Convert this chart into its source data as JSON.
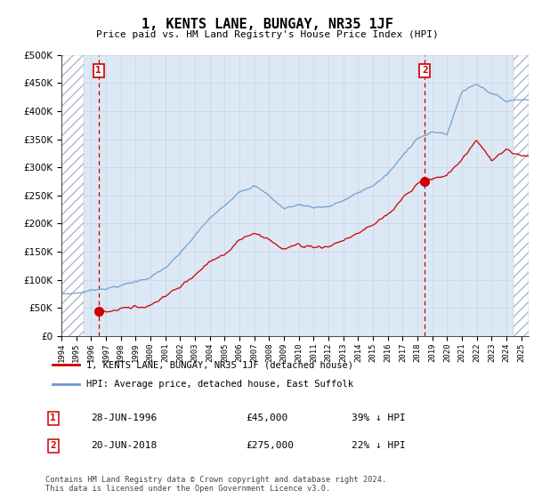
{
  "title": "1, KENTS LANE, BUNGAY, NR35 1JF",
  "subtitle": "Price paid vs. HM Land Registry's House Price Index (HPI)",
  "sale1_date": "28-JUN-1996",
  "sale1_price": 45000,
  "sale1_hpi_pct": "39% ↓ HPI",
  "sale2_date": "20-JUN-2018",
  "sale2_price": 275000,
  "sale2_hpi_pct": "22% ↓ HPI",
  "legend_line1": "1, KENTS LANE, BUNGAY, NR35 1JF (detached house)",
  "legend_line2": "HPI: Average price, detached house, East Suffolk",
  "footer": "Contains HM Land Registry data © Crown copyright and database right 2024.\nThis data is licensed under the Open Government Licence v3.0.",
  "red_color": "#cc0000",
  "blue_color": "#6699cc",
  "grid_color": "#c8d4e8",
  "bg_color": "#dce8f4",
  "ylim": [
    0,
    500000
  ],
  "xlim_start": 1994.0,
  "xlim_end": 2025.5,
  "sale1_x": 1996.5,
  "sale2_x": 2018.5,
  "hatch_left_end": 1995.5,
  "hatch_right_start": 2024.5
}
